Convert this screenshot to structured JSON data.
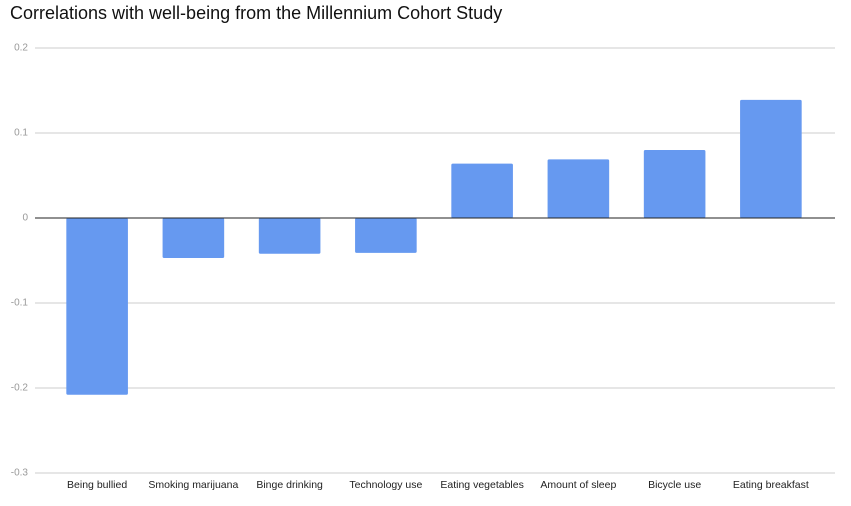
{
  "chart_data": {
    "type": "bar",
    "title": "Correlations with well-being from the Millennium Cohort Study",
    "categories": [
      "Being bullied",
      "Smoking marijuana",
      "Binge drinking",
      "Technology use",
      "Eating vegetables",
      "Amount of sleep",
      "Bicycle use",
      "Eating breakfast"
    ],
    "values": [
      -0.208,
      -0.047,
      -0.042,
      -0.041,
      0.064,
      0.069,
      0.08,
      0.139
    ],
    "color": "#6699f0",
    "ylim": [
      -0.3,
      0.2
    ],
    "yticks": [
      -0.3,
      -0.2,
      -0.1,
      0,
      0.1,
      0.2
    ],
    "grid": true
  }
}
